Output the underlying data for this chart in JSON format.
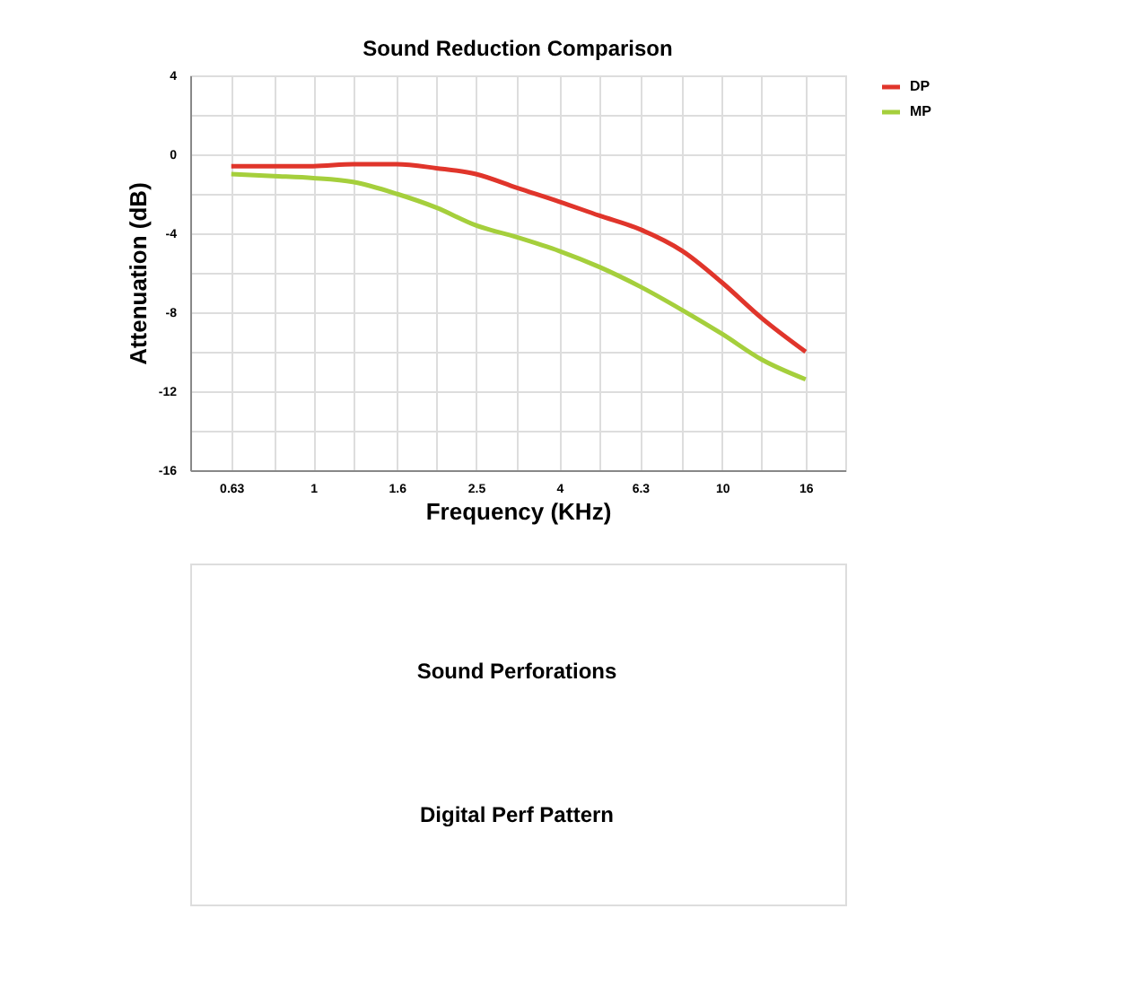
{
  "chart_data": {
    "type": "line",
    "title": "Sound Reduction Comparison",
    "xlabel": "Frequency (KHz)",
    "ylabel": "Attenuation (dB)",
    "x": [
      0.63,
      0.8,
      1,
      1.25,
      1.6,
      2,
      2.5,
      3.15,
      4,
      5,
      6.3,
      8,
      10,
      12.5,
      16
    ],
    "series": [
      {
        "name": "DP",
        "color": "#e0352b",
        "values": [
          -0.6,
          -0.6,
          -0.6,
          -0.5,
          -0.5,
          -0.7,
          -1.0,
          -1.7,
          -2.4,
          -3.1,
          -3.8,
          -4.9,
          -6.5,
          -8.3,
          -10.0
        ]
      },
      {
        "name": "MP",
        "color": "#a5cf3c",
        "values": [
          -1.0,
          -1.1,
          -1.2,
          -1.4,
          -2.0,
          -2.7,
          -3.6,
          -4.2,
          -4.9,
          -5.7,
          -6.7,
          -7.9,
          -9.1,
          -10.4,
          -11.4
        ]
      }
    ],
    "log": "x",
    "xlim": [
      0.5,
      20
    ],
    "xticks": [
      0.63,
      {
        "value": 0.8,
        "label": null
      },
      1,
      {
        "value": 1.25,
        "label": null
      },
      1.6,
      {
        "value": 2,
        "label": null
      },
      2.5,
      {
        "value": 3.15,
        "label": null
      },
      4,
      {
        "value": 5,
        "label": null
      },
      6.3,
      {
        "value": 8,
        "label": null
      },
      10,
      {
        "value": 12.5,
        "label": null
      },
      16
    ],
    "ylim": [
      -16,
      4
    ],
    "yticks": [
      -16,
      {
        "value": -14,
        "label": null
      },
      -12,
      {
        "value": -10,
        "label": null
      },
      -8,
      {
        "value": -6,
        "label": null
      },
      -4,
      {
        "value": -2,
        "label": null
      },
      0,
      {
        "value": 2,
        "label": null
      },
      4
    ],
    "grid": true,
    "legend": "right",
    "line_style": "solid",
    "annotations": [
      "Sound Perforations",
      "Digital Perf Pattern"
    ]
  }
}
